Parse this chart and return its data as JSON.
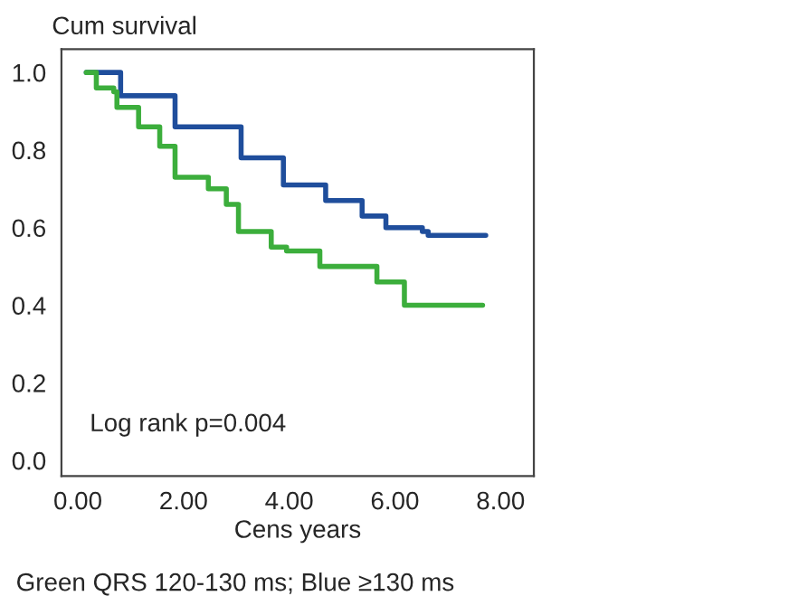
{
  "chart_data": {
    "type": "step",
    "ylabel": "Cum survival",
    "xlabel": "Cens years",
    "annotations": [
      "Log rank p=0.004",
      "Green QRS 120-130 ms; Blue ≥130 ms"
    ],
    "series": [
      {
        "color": "#1f4e9c",
        "x": [
          0.16,
          0.81,
          1.84,
          3.09,
          3.89,
          4.69,
          5.38,
          5.83,
          6.52,
          6.63,
          7.72
        ],
        "values": [
          1.0,
          0.94,
          0.86,
          0.78,
          0.71,
          0.67,
          0.63,
          0.6,
          0.59,
          0.58,
          0.58
        ]
      },
      {
        "color": "#3cae3c",
        "x": [
          0.16,
          0.35,
          0.68,
          0.74,
          1.15,
          1.55,
          1.84,
          2.47,
          2.81,
          3.04,
          3.66,
          3.95,
          4.58,
          5.66,
          6.18,
          7.66
        ],
        "values": [
          1.0,
          0.96,
          0.95,
          0.91,
          0.86,
          0.81,
          0.73,
          0.7,
          0.66,
          0.59,
          0.55,
          0.54,
          0.5,
          0.46,
          0.4,
          0.4
        ]
      }
    ],
    "xlim": [
      -0.31,
      8.63
    ],
    "ylim": [
      -0.04,
      1.06
    ],
    "xticks": [
      {
        "value": 0,
        "label": "0.00"
      },
      {
        "value": 2,
        "label": "2.00"
      },
      {
        "value": 4,
        "label": "4.00"
      },
      {
        "value": 6,
        "label": "6.00"
      },
      {
        "value": 8,
        "label": "8.00"
      }
    ],
    "yticks": [
      {
        "value": 0,
        "label": "0.0"
      },
      {
        "value": 0.2,
        "label": "0.2"
      },
      {
        "value": 0.4,
        "label": "0.4"
      },
      {
        "value": 0.6,
        "label": "0.6"
      },
      {
        "value": 0.8,
        "label": "0.8"
      },
      {
        "value": 1.0,
        "label": "1.0"
      }
    ],
    "grid": false,
    "legend": false
  }
}
